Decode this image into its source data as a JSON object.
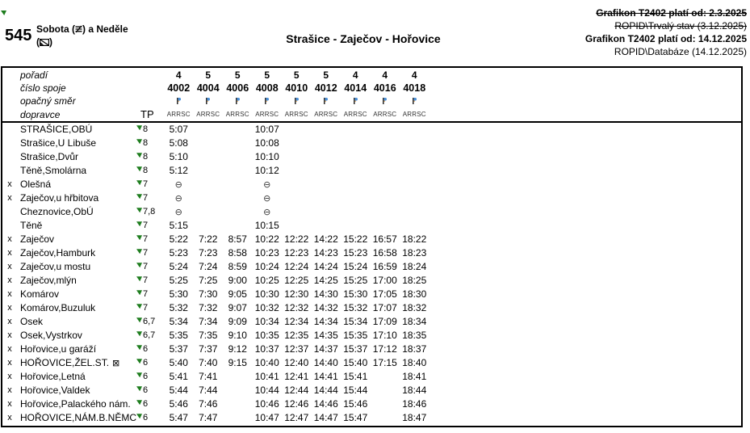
{
  "header": {
    "route_number": "545",
    "operating_days": {
      "line1_prefix": "Sobota (",
      "line1_suffix": ") a Neděle",
      "line2_prefix": "(",
      "line2_suffix": ")"
    },
    "title": "Strašice - Zaječov - Hořovice",
    "validity": [
      {
        "text": "Grafikon T2402 platí od: 2.3.2025",
        "bold": true,
        "strikethrough": true
      },
      {
        "text": "ROPID\\Trvalý stav (3.12.2025)",
        "bold": false,
        "strikethrough": true
      },
      {
        "text": "Grafikon T2402 platí od: 14.12.2025",
        "bold": true,
        "strikethrough": false
      },
      {
        "text": "ROPID\\Databáze (14.12.2025)",
        "bold": false,
        "strikethrough": false
      }
    ]
  },
  "timetable": {
    "labels": {
      "order": "pořadí",
      "trip": "číslo spoje",
      "opposite_direction": "opačný směr",
      "operator": "dopravce"
    },
    "order_values": [
      "4",
      "5",
      "5",
      "5",
      "5",
      "5",
      "4",
      "4",
      "4"
    ],
    "trip_numbers": [
      "4002",
      "4004",
      "4006",
      "4008",
      "4010",
      "4012",
      "4014",
      "4016",
      "4018"
    ],
    "operator_zone_value": "TP",
    "operator_values": [
      "ARRSC",
      "ARRSC",
      "ARRSC",
      "ARRSC",
      "ARRSC",
      "ARRSC",
      "ARRSC",
      "ARRSC",
      "ARRSC"
    ],
    "no_stop_symbol": "⊖",
    "train_station_symbol": "⊠",
    "stops": [
      {
        "x": "",
        "name": "STRAŠICE,OBÚ",
        "zone": "8",
        "times": [
          "5:07",
          "",
          "",
          "10:07",
          "",
          "",
          "",
          "",
          ""
        ]
      },
      {
        "x": "",
        "name": "Strašice,U Libuše",
        "zone": "8",
        "times": [
          "5:08",
          "",
          "",
          "10:08",
          "",
          "",
          "",
          "",
          ""
        ]
      },
      {
        "x": "",
        "name": "Strašice,Dvůr",
        "zone": "8",
        "times": [
          "5:10",
          "",
          "",
          "10:10",
          "",
          "",
          "",
          "",
          ""
        ]
      },
      {
        "x": "",
        "name": "Těně,Smolárna",
        "zone": "8",
        "times": [
          "5:12",
          "",
          "",
          "10:12",
          "",
          "",
          "",
          "",
          ""
        ]
      },
      {
        "x": "x",
        "name": "Olešná",
        "zone": "7",
        "times": [
          "⊖",
          "",
          "",
          "⊖",
          "",
          "",
          "",
          "",
          ""
        ]
      },
      {
        "x": "x",
        "name": "Zaječov,u hřbitova",
        "zone": "7",
        "times": [
          "⊖",
          "",
          "",
          "⊖",
          "",
          "",
          "",
          "",
          ""
        ]
      },
      {
        "x": "",
        "name": "Cheznovice,ObÚ",
        "zone": "7,8",
        "times": [
          "⊖",
          "",
          "",
          "⊖",
          "",
          "",
          "",
          "",
          ""
        ]
      },
      {
        "x": "",
        "name": "Těně",
        "zone": "7",
        "times": [
          "5:15",
          "",
          "",
          "10:15",
          "",
          "",
          "",
          "",
          ""
        ]
      },
      {
        "x": "x",
        "name": "Zaječov",
        "zone": "7",
        "times": [
          "5:22",
          "7:22",
          "8:57",
          "10:22",
          "12:22",
          "14:22",
          "15:22",
          "16:57",
          "18:22"
        ]
      },
      {
        "x": "x",
        "name": "Zaječov,Hamburk",
        "zone": "7",
        "times": [
          "5:23",
          "7:23",
          "8:58",
          "10:23",
          "12:23",
          "14:23",
          "15:23",
          "16:58",
          "18:23"
        ]
      },
      {
        "x": "x",
        "name": "Zaječov,u mostu",
        "zone": "7",
        "times": [
          "5:24",
          "7:24",
          "8:59",
          "10:24",
          "12:24",
          "14:24",
          "15:24",
          "16:59",
          "18:24"
        ]
      },
      {
        "x": "x",
        "name": "Zaječov,mlýn",
        "zone": "7",
        "times": [
          "5:25",
          "7:25",
          "9:00",
          "10:25",
          "12:25",
          "14:25",
          "15:25",
          "17:00",
          "18:25"
        ]
      },
      {
        "x": "x",
        "name": "Komárov",
        "zone": "7",
        "times": [
          "5:30",
          "7:30",
          "9:05",
          "10:30",
          "12:30",
          "14:30",
          "15:30",
          "17:05",
          "18:30"
        ]
      },
      {
        "x": "x",
        "name": "Komárov,Buzuluk",
        "zone": "7",
        "times": [
          "5:32",
          "7:32",
          "9:07",
          "10:32",
          "12:32",
          "14:32",
          "15:32",
          "17:07",
          "18:32"
        ]
      },
      {
        "x": "x",
        "name": "Osek",
        "zone": "6,7",
        "times": [
          "5:34",
          "7:34",
          "9:09",
          "10:34",
          "12:34",
          "14:34",
          "15:34",
          "17:09",
          "18:34"
        ]
      },
      {
        "x": "x",
        "name": "Osek,Vystrkov",
        "zone": "6,7",
        "times": [
          "5:35",
          "7:35",
          "9:10",
          "10:35",
          "12:35",
          "14:35",
          "15:35",
          "17:10",
          "18:35"
        ]
      },
      {
        "x": "x",
        "name": "Hořovice,u garáží",
        "zone": "6",
        "times": [
          "5:37",
          "7:37",
          "9:12",
          "10:37",
          "12:37",
          "14:37",
          "15:37",
          "17:12",
          "18:37"
        ]
      },
      {
        "x": "x",
        "name": "HOŘOVICE,ŽEL.ST.",
        "zone": "6",
        "train": true,
        "times": [
          "5:40",
          "7:40",
          "9:15",
          "10:40",
          "12:40",
          "14:40",
          "15:40",
          "17:15",
          "18:40"
        ]
      },
      {
        "x": "x",
        "name": "Hořovice,Letná",
        "zone": "6",
        "times": [
          "5:41",
          "7:41",
          "",
          "10:41",
          "12:41",
          "14:41",
          "15:41",
          "",
          "18:41"
        ]
      },
      {
        "x": "x",
        "name": "Hořovice,Valdek",
        "zone": "6",
        "times": [
          "5:44",
          "7:44",
          "",
          "10:44",
          "12:44",
          "14:44",
          "15:44",
          "",
          "18:44"
        ]
      },
      {
        "x": "x",
        "name": "Hořovice,Palackého nám.",
        "zone": "6",
        "times": [
          "5:46",
          "7:46",
          "",
          "10:46",
          "12:46",
          "14:46",
          "15:46",
          "",
          "18:46"
        ]
      },
      {
        "x": "x",
        "name": "HOŘOVICE,NÁM.B.NĚMCOV",
        "zone": "6",
        "times": [
          "5:47",
          "7:47",
          "",
          "10:47",
          "12:47",
          "14:47",
          "15:47",
          "",
          "18:47"
        ]
      }
    ]
  }
}
